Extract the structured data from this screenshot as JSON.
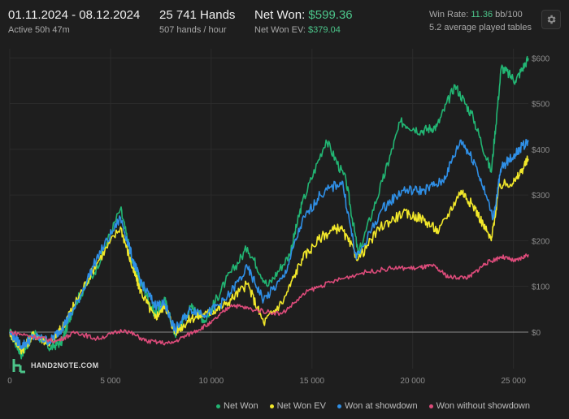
{
  "header": {
    "date_range": "01.11.2024 - 08.12.2024",
    "active": "Active 50h 47m",
    "hands": "25 741 Hands",
    "hands_per_hour": "507 hands / hour",
    "net_won_label": "Net Won:",
    "net_won_value": "$599.36",
    "net_won_ev_label": "Net Won  EV:",
    "net_won_ev_value": "$379.04",
    "win_rate_label": "Win Rate:",
    "win_rate_value": "11.36",
    "win_rate_unit": "bb/100",
    "tables": "5.2 average played tables"
  },
  "logo": {
    "text": "HAND2NOTE.COM"
  },
  "settings_icon": "gear-icon",
  "colors": {
    "net_won": "#22b573",
    "net_won_ev": "#f2e82a",
    "won_showdown": "#2f8fe6",
    "won_without_showdown": "#dc4b7a",
    "accent_green": "#4cc58a"
  },
  "chart_data": {
    "type": "line",
    "xlabel": "",
    "ylabel": "",
    "xlim": [
      0,
      25741
    ],
    "ylim": [
      -80,
      620
    ],
    "x_ticks": [
      0,
      5000,
      10000,
      15000,
      20000,
      25000
    ],
    "x_tick_labels": [
      "0",
      "5 000",
      "10 000",
      "15 000",
      "20 000",
      "25 000"
    ],
    "y_ticks": [
      0,
      100,
      200,
      300,
      400,
      500,
      600
    ],
    "y_tick_labels": [
      "$0",
      "$100",
      "$200",
      "$300",
      "$400",
      "$500",
      "$600"
    ],
    "grid": true,
    "legend_position": "bottom-right",
    "series": [
      {
        "name": "Net Won",
        "color": "#22b573",
        "points": [
          [
            0,
            0
          ],
          [
            600,
            -50
          ],
          [
            1200,
            0
          ],
          [
            2000,
            -35
          ],
          [
            2600,
            -20
          ],
          [
            3200,
            60
          ],
          [
            4200,
            130
          ],
          [
            5500,
            270
          ],
          [
            6100,
            150
          ],
          [
            6500,
            110
          ],
          [
            7200,
            40
          ],
          [
            7700,
            70
          ],
          [
            8200,
            -5
          ],
          [
            9000,
            55
          ],
          [
            9700,
            25
          ],
          [
            10700,
            110
          ],
          [
            11800,
            185
          ],
          [
            12800,
            100
          ],
          [
            13900,
            170
          ],
          [
            14500,
            280
          ],
          [
            15700,
            420
          ],
          [
            16700,
            330
          ],
          [
            17300,
            170
          ],
          [
            18500,
            330
          ],
          [
            19400,
            460
          ],
          [
            20400,
            440
          ],
          [
            21200,
            450
          ],
          [
            22100,
            540
          ],
          [
            23000,
            470
          ],
          [
            23900,
            350
          ],
          [
            24400,
            580
          ],
          [
            25100,
            550
          ],
          [
            25741,
            599
          ]
        ]
      },
      {
        "name": "Net Won  EV",
        "color": "#f2e82a",
        "points": [
          [
            0,
            0
          ],
          [
            600,
            -40
          ],
          [
            1200,
            -5
          ],
          [
            2000,
            -25
          ],
          [
            2600,
            10
          ],
          [
            3200,
            60
          ],
          [
            4300,
            150
          ],
          [
            5500,
            230
          ],
          [
            6100,
            140
          ],
          [
            6500,
            90
          ],
          [
            7200,
            30
          ],
          [
            7700,
            60
          ],
          [
            8200,
            0
          ],
          [
            9000,
            30
          ],
          [
            9800,
            40
          ],
          [
            10700,
            60
          ],
          [
            11800,
            105
          ],
          [
            12600,
            20
          ],
          [
            13600,
            70
          ],
          [
            14500,
            160
          ],
          [
            15500,
            210
          ],
          [
            16400,
            230
          ],
          [
            17300,
            160
          ],
          [
            18400,
            230
          ],
          [
            19500,
            260
          ],
          [
            20400,
            250
          ],
          [
            21300,
            220
          ],
          [
            22400,
            310
          ],
          [
            23100,
            270
          ],
          [
            23900,
            200
          ],
          [
            24300,
            320
          ],
          [
            25100,
            330
          ],
          [
            25741,
            379
          ]
        ]
      },
      {
        "name": "Won at showdown",
        "color": "#2f8fe6",
        "points": [
          [
            0,
            0
          ],
          [
            600,
            -30
          ],
          [
            1200,
            -10
          ],
          [
            2000,
            -20
          ],
          [
            2600,
            10
          ],
          [
            3200,
            50
          ],
          [
            4300,
            160
          ],
          [
            5500,
            250
          ],
          [
            6100,
            160
          ],
          [
            6500,
            110
          ],
          [
            7200,
            60
          ],
          [
            7700,
            60
          ],
          [
            8200,
            5
          ],
          [
            9000,
            50
          ],
          [
            9800,
            40
          ],
          [
            10700,
            70
          ],
          [
            11800,
            140
          ],
          [
            12600,
            70
          ],
          [
            13600,
            120
          ],
          [
            14500,
            240
          ],
          [
            15400,
            300
          ],
          [
            16500,
            330
          ],
          [
            17200,
            160
          ],
          [
            18500,
            270
          ],
          [
            19500,
            310
          ],
          [
            20500,
            310
          ],
          [
            21500,
            330
          ],
          [
            22400,
            420
          ],
          [
            23100,
            370
          ],
          [
            24000,
            250
          ],
          [
            24400,
            360
          ],
          [
            25100,
            390
          ],
          [
            25741,
            420
          ]
        ]
      },
      {
        "name": "Won without showdown",
        "color": "#dc4b7a",
        "points": [
          [
            0,
            0
          ],
          [
            1200,
            -10
          ],
          [
            2300,
            -20
          ],
          [
            3300,
            0
          ],
          [
            4300,
            -15
          ],
          [
            5700,
            5
          ],
          [
            6800,
            -20
          ],
          [
            8000,
            -25
          ],
          [
            9100,
            0
          ],
          [
            10000,
            20
          ],
          [
            11000,
            60
          ],
          [
            12000,
            50
          ],
          [
            13500,
            40
          ],
          [
            14800,
            90
          ],
          [
            16000,
            110
          ],
          [
            17500,
            130
          ],
          [
            19000,
            140
          ],
          [
            20200,
            140
          ],
          [
            21000,
            145
          ],
          [
            21800,
            120
          ],
          [
            22800,
            120
          ],
          [
            23600,
            150
          ],
          [
            24400,
            165
          ],
          [
            25100,
            155
          ],
          [
            25741,
            170
          ]
        ]
      }
    ]
  }
}
